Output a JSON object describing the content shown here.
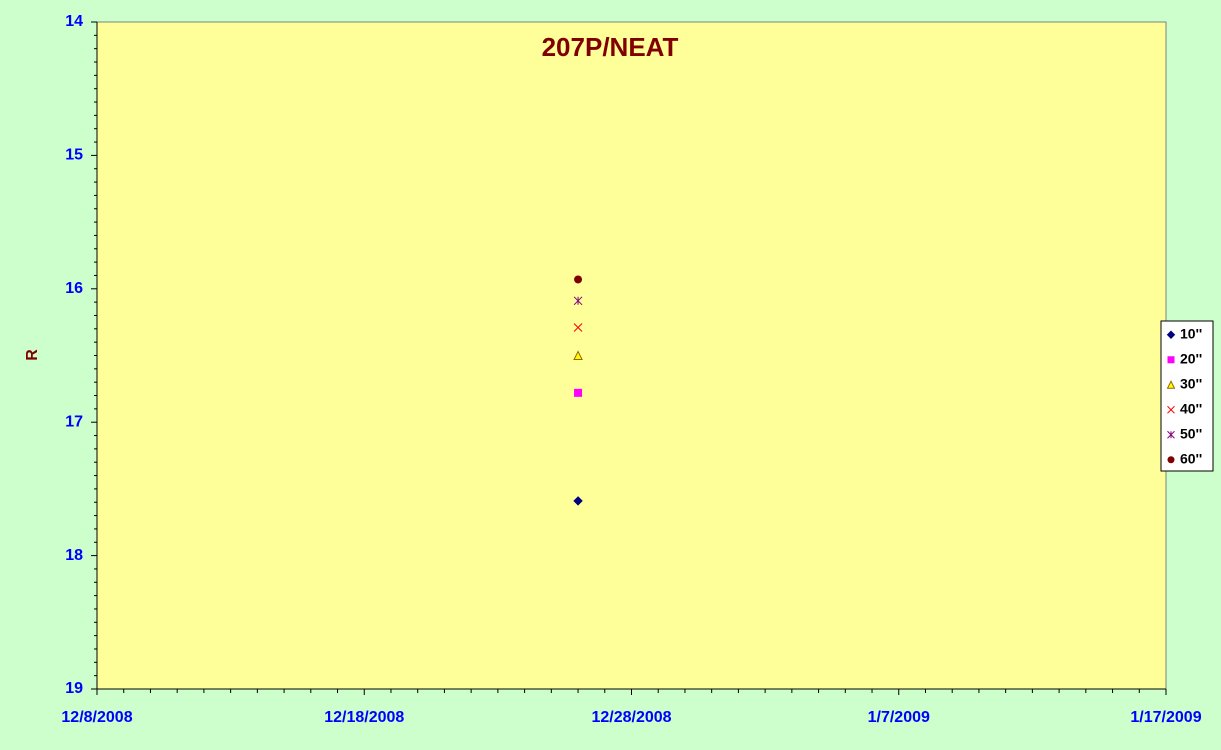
{
  "chart_data": {
    "type": "scatter",
    "title": "207P/NEAT",
    "y_label": "R",
    "x": [
      "2008-12-26"
    ],
    "series": [
      {
        "name": "10''",
        "color": "#000080",
        "marker": "diamond",
        "values": [
          17.59
        ]
      },
      {
        "name": "20''",
        "color": "#ff00ff",
        "marker": "square",
        "values": [
          16.78
        ]
      },
      {
        "name": "30''",
        "color": "#ffff00",
        "marker": "triangle",
        "values": [
          16.5
        ]
      },
      {
        "name": "40''",
        "color": "#ff0000",
        "marker": "x",
        "values": [
          16.29
        ]
      },
      {
        "name": "50''",
        "color": "#800080",
        "marker": "star",
        "values": [
          16.09
        ]
      },
      {
        "name": "60''",
        "color": "#800000",
        "marker": "circle",
        "values": [
          15.93
        ]
      }
    ],
    "xlim": [
      "2008-12-08",
      "2009-01-17"
    ],
    "xticks": [
      {
        "value": "2008-12-08",
        "label": "12/8/2008"
      },
      {
        "value": "2008-12-18",
        "label": "12/18/2008"
      },
      {
        "value": "2008-12-28",
        "label": "12/28/2008"
      },
      {
        "value": "2009-01-07",
        "label": "1/7/2009"
      },
      {
        "value": "2009-01-17",
        "label": "1/17/2009"
      }
    ],
    "ylim": [
      14,
      19
    ],
    "yticks": [
      14,
      15,
      16,
      17,
      18,
      19
    ],
    "y_reversed": true,
    "grid": false,
    "legend": "right"
  }
}
